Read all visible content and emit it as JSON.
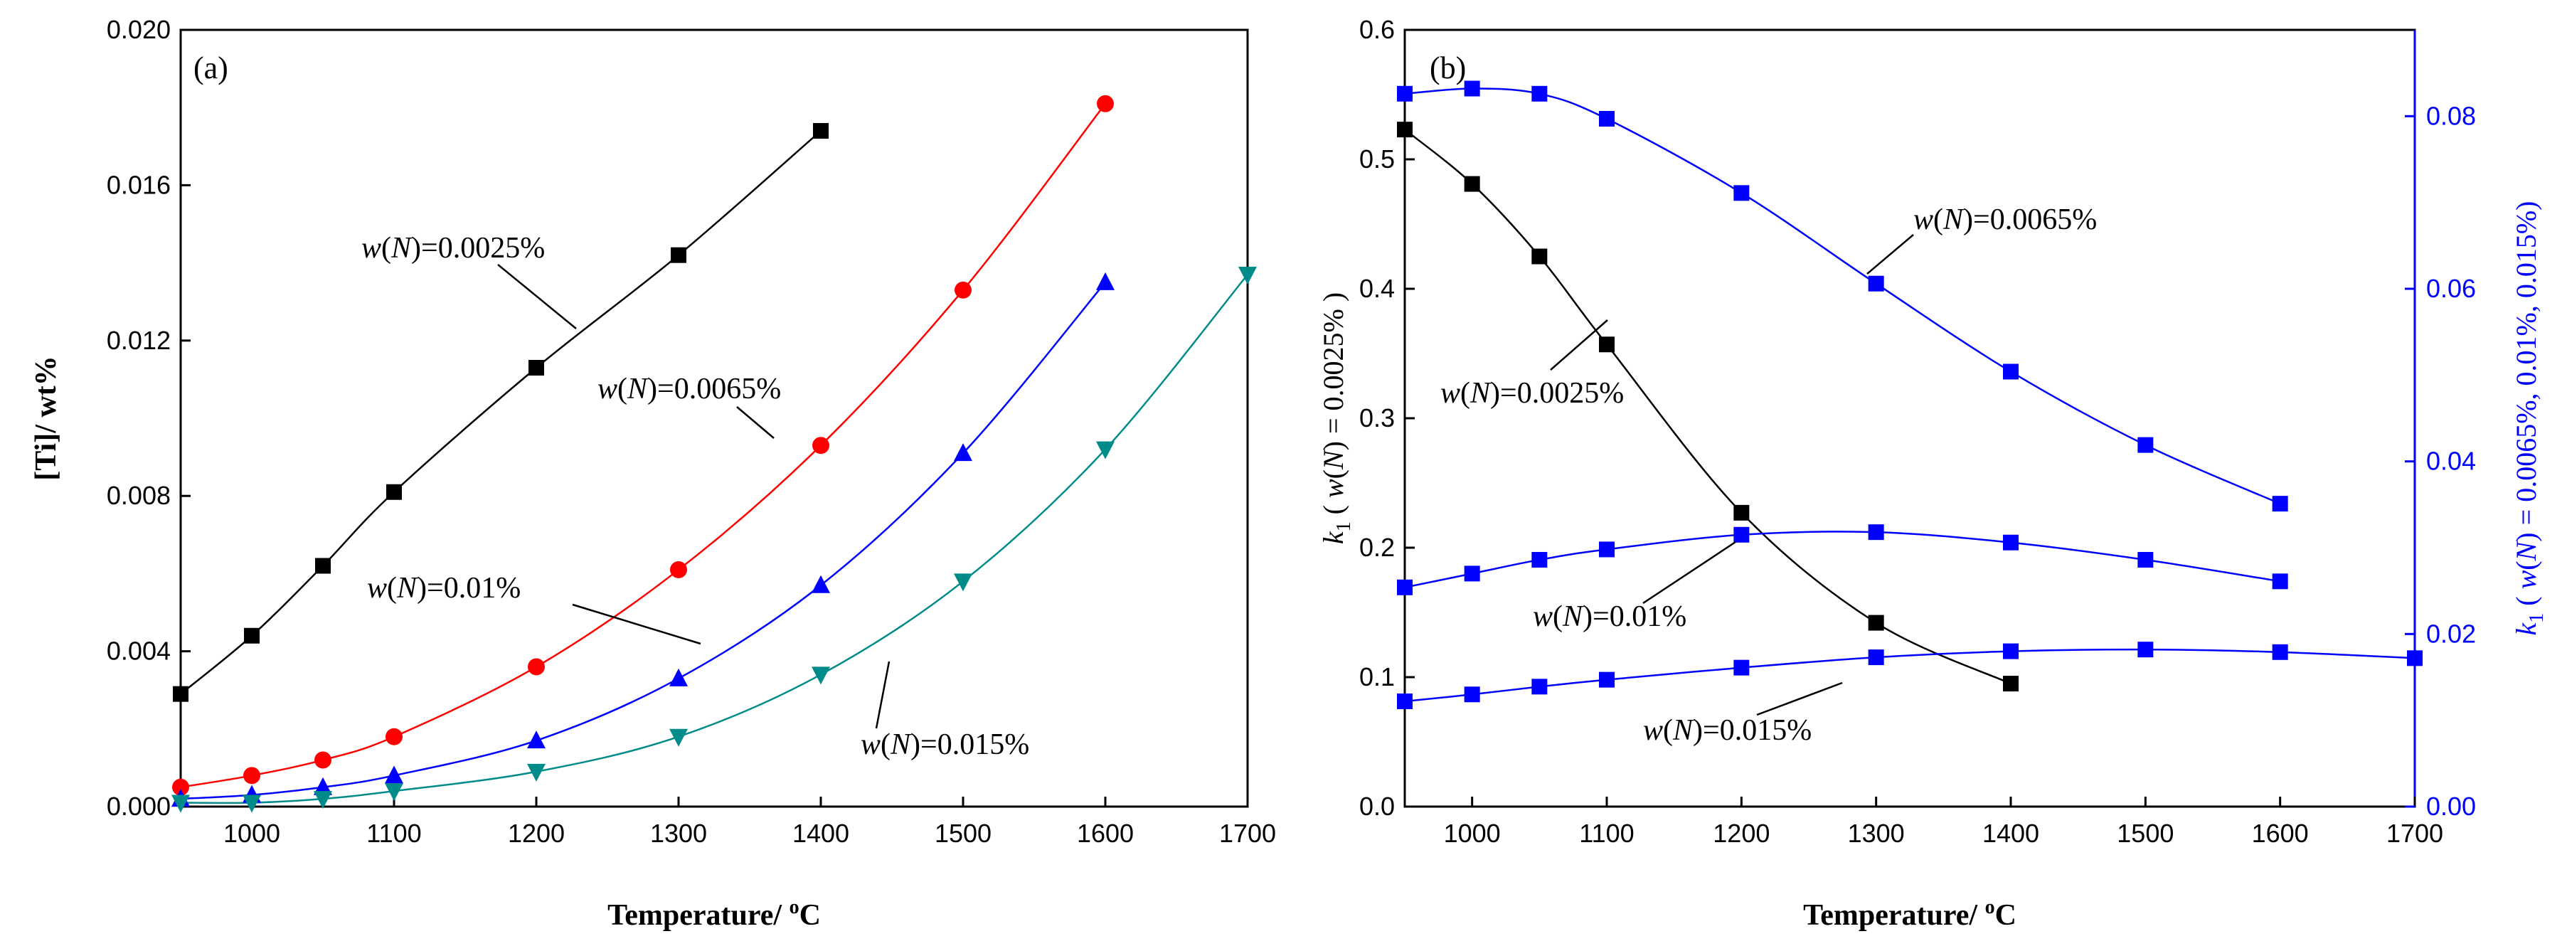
{
  "chart_data": [
    {
      "type": "line",
      "panel_label": "(a)",
      "xlabel": "Temperature/ °C",
      "ylabel": "[Ti]/ wt%",
      "xlim": [
        950,
        1700
      ],
      "ylim": [
        0,
        0.02
      ],
      "xticks": [
        "1000",
        "1100",
        "1200",
        "1300",
        "1400",
        "1500",
        "1600",
        "1700"
      ],
      "yticks": [
        "0.000",
        "0.004",
        "0.008",
        "0.012",
        "0.016",
        "0.020"
      ],
      "series": [
        {
          "name": "w(N)=0.0025%",
          "color": "#000000",
          "marker": "square",
          "x": [
            950,
            1000,
            1050,
            1100,
            1200,
            1300,
            1400
          ],
          "y": [
            0.0029,
            0.0044,
            0.0062,
            0.0081,
            0.0113,
            0.0142,
            0.0174
          ]
        },
        {
          "name": "w(N)=0.0065%",
          "color": "#ff0000",
          "marker": "circle",
          "x": [
            950,
            1000,
            1050,
            1100,
            1200,
            1300,
            1400,
            1500,
            1600
          ],
          "y": [
            0.0005,
            0.0008,
            0.0012,
            0.0018,
            0.0036,
            0.0061,
            0.0093,
            0.0133,
            0.0181
          ]
        },
        {
          "name": "w(N)=0.01%",
          "color": "#0000ff",
          "marker": "triangle-up",
          "x": [
            950,
            1000,
            1050,
            1100,
            1200,
            1300,
            1400,
            1500,
            1600
          ],
          "y": [
            0.0002,
            0.0003,
            0.0005,
            0.0008,
            0.0017,
            0.0033,
            0.0057,
            0.0091,
            0.0135
          ]
        },
        {
          "name": "w(N)=0.015%",
          "color": "#008b8b",
          "marker": "triangle-down",
          "x": [
            950,
            1000,
            1050,
            1100,
            1200,
            1300,
            1400,
            1500,
            1600,
            1700
          ],
          "y": [
            0.0001,
            0.0001,
            0.0002,
            0.0004,
            0.0009,
            0.0018,
            0.0034,
            0.0058,
            0.0092,
            0.0137
          ]
        }
      ],
      "annotations": [
        {
          "pre": "w",
          "mid": "(",
          "N": "N",
          "post": ")=0.0025%",
          "series": 0
        },
        {
          "pre": "w",
          "mid": "(",
          "N": "N",
          "post": ")=0.0065%",
          "series": 1
        },
        {
          "pre": "w",
          "mid": "(",
          "N": "N",
          "post": ")=0.01%",
          "series": 2
        },
        {
          "pre": "w",
          "mid": "(",
          "N": "N",
          "post": ")=0.015%",
          "series": 3
        }
      ]
    },
    {
      "type": "line",
      "panel_label": "(b)",
      "xlabel": "Temperature/ °C",
      "ylabel_left": "k₁ ( w(N) = 0.0025% )",
      "ylabel_right": "k₁ ( w(N) = 0.0065%, 0.01%, 0.015%)",
      "xlim": [
        950,
        1700
      ],
      "ylim_left": [
        0,
        0.6
      ],
      "ylim_right": [
        0,
        0.09
      ],
      "xticks": [
        "1000",
        "1100",
        "1200",
        "1300",
        "1400",
        "1500",
        "1600",
        "1700"
      ],
      "yticks_left": [
        "0.0",
        "0.1",
        "0.2",
        "0.3",
        "0.4",
        "0.5",
        "0.6"
      ],
      "yticks_right": [
        "0.00",
        "0.02",
        "0.04",
        "0.06",
        "0.08"
      ],
      "series": [
        {
          "name": "w(N)=0.0025%",
          "axis": "left",
          "color": "#000000",
          "marker": "square",
          "x": [
            950,
            1000,
            1050,
            1100,
            1200,
            1300,
            1400
          ],
          "y": [
            0.523,
            0.481,
            0.425,
            0.357,
            0.227,
            0.142,
            0.095
          ]
        },
        {
          "name": "w(N)=0.0065%",
          "axis": "right",
          "color": "#0000ff",
          "marker": "square",
          "x": [
            950,
            1000,
            1050,
            1100,
            1200,
            1300,
            1400,
            1500,
            1600
          ],
          "y": [
            0.0826,
            0.0832,
            0.0826,
            0.0797,
            0.0711,
            0.0606,
            0.0504,
            0.0419,
            0.0351
          ]
        },
        {
          "name": "w(N)=0.01%",
          "axis": "right",
          "color": "#0000ff",
          "marker": "square",
          "x": [
            950,
            1000,
            1050,
            1100,
            1200,
            1300,
            1400,
            1500,
            1600
          ],
          "y": [
            0.0254,
            0.027,
            0.0286,
            0.0298,
            0.0315,
            0.0318,
            0.0306,
            0.0286,
            0.0261
          ]
        },
        {
          "name": "w(N)=0.015%",
          "axis": "right",
          "color": "#0000ff",
          "marker": "square",
          "x": [
            950,
            1000,
            1050,
            1100,
            1200,
            1300,
            1400,
            1500,
            1600,
            1700
          ],
          "y": [
            0.0122,
            0.013,
            0.0139,
            0.0147,
            0.0161,
            0.0173,
            0.018,
            0.0182,
            0.0179,
            0.0172
          ]
        }
      ],
      "annotations": [
        {
          "pre": "w",
          "mid": "(",
          "N": "N",
          "post": ")=0.0065%",
          "series": 1
        },
        {
          "pre": "w",
          "mid": "(",
          "N": "N",
          "post": ")=0.0025%",
          "series": 0
        },
        {
          "pre": "w",
          "mid": "(",
          "N": "N",
          "post": ")=0.01%",
          "series": 2
        },
        {
          "pre": "w",
          "mid": "(",
          "N": "N",
          "post": ")=0.015%",
          "series": 3
        }
      ]
    }
  ]
}
